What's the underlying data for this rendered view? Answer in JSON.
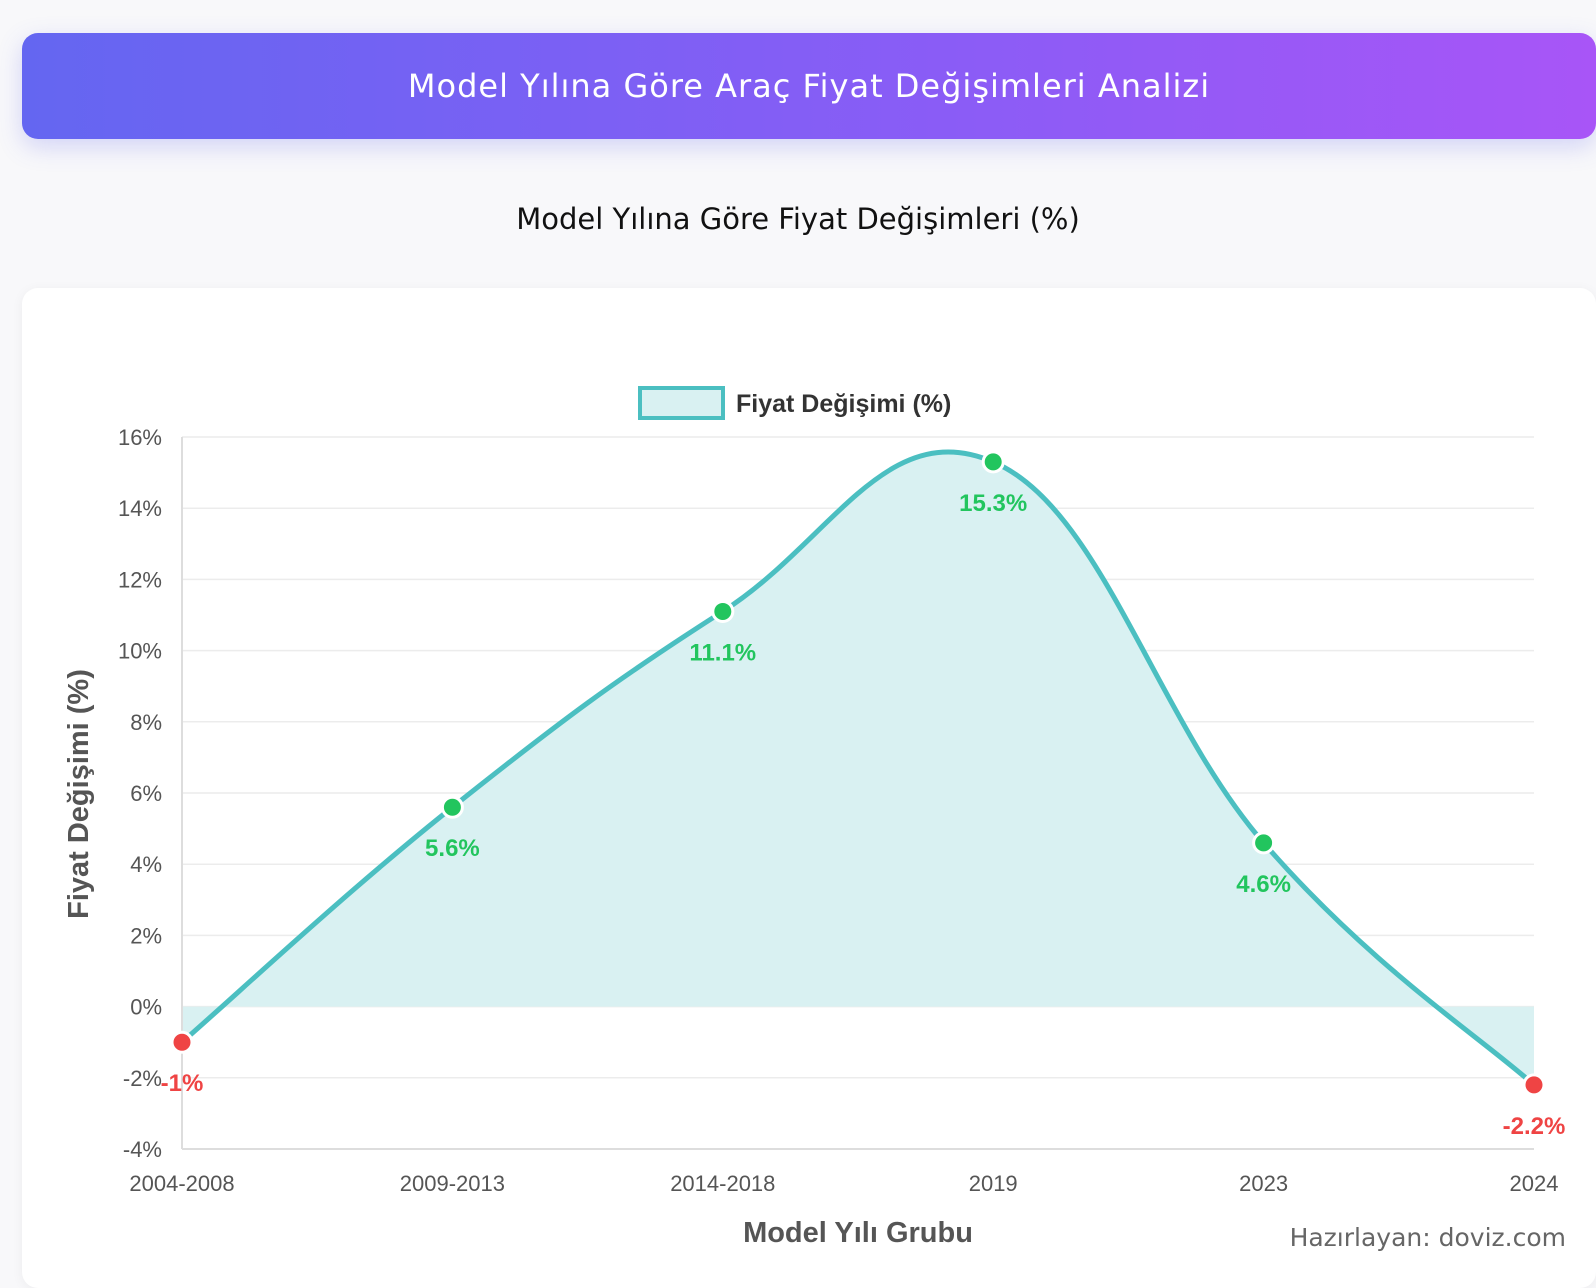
{
  "header": {
    "title": "Model Yılına Göre Araç Fiyat Değişimleri Analizi"
  },
  "subtitle": "Model Yılına Göre Fiyat Değişimleri (%)",
  "footer": {
    "credit": "Hazırlayan: doviz.com"
  },
  "colors": {
    "line": "#4bbfc1",
    "fill": "#d9f1f2",
    "positive": "#22c55e",
    "negative": "#ef4444",
    "grid": "#ececec",
    "axis_text": "#555555"
  },
  "chart_data": {
    "type": "area",
    "title": "",
    "xlabel": "Model Yılı Grubu",
    "ylabel": "Fiyat Değişimi (%)",
    "categories": [
      "2004-2008",
      "2009-2013",
      "2014-2018",
      "2019",
      "2023",
      "2024"
    ],
    "series": [
      {
        "name": "Fiyat Değişimi (%)",
        "values": [
          -1,
          5.6,
          11.1,
          15.3,
          4.6,
          -2.2
        ]
      }
    ],
    "data_labels": [
      "-1%",
      "5.6%",
      "11.1%",
      "15.3%",
      "4.6%",
      "-2.2%"
    ],
    "yticks": [
      "-4%",
      "-2%",
      "0%",
      "2%",
      "4%",
      "6%",
      "8%",
      "10%",
      "12%",
      "14%",
      "16%"
    ],
    "ytick_values": [
      -4,
      -2,
      0,
      2,
      4,
      6,
      8,
      10,
      12,
      14,
      16
    ],
    "ylim": [
      -4,
      16
    ],
    "grid": true,
    "legend_position": "top-center"
  }
}
